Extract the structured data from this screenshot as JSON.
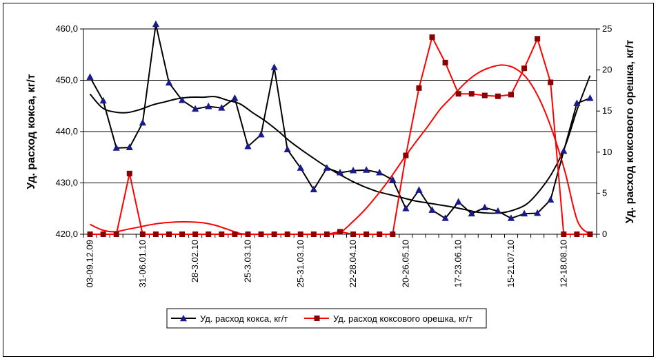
{
  "chart_data": {
    "type": "line",
    "ylabel_left": "Уд. расход кокса, кг/т",
    "ylabel_right": "Уд. расход коксового орешка, кг/т",
    "ylim_left": [
      420,
      460
    ],
    "yticks_left": [
      "420,0",
      "430,0",
      "440,0",
      "450,0",
      "460,0"
    ],
    "ylim_right": [
      0,
      25
    ],
    "yticks_right": [
      "0",
      "5",
      "10",
      "15",
      "20",
      "25"
    ],
    "x_tick_labels": [
      {
        "index": 0,
        "label": "03-09.12.09"
      },
      {
        "index": 4,
        "label": "31-06.01.10"
      },
      {
        "index": 8,
        "label": "28-3.02.10"
      },
      {
        "index": 12,
        "label": "25-3.03.10"
      },
      {
        "index": 16,
        "label": "25-31.03.10"
      },
      {
        "index": 20,
        "label": "22-28.04.10"
      },
      {
        "index": 24,
        "label": "20-26.05.10"
      },
      {
        "index": 28,
        "label": "17-23.06.10"
      },
      {
        "index": 32,
        "label": "15-21.07.10"
      },
      {
        "index": 36,
        "label": "12-18.08.10"
      }
    ],
    "grid": "horizontal",
    "legend_position": "bottom",
    "series": [
      {
        "name": "Уд. расход кокса, кг/т",
        "axis": "left",
        "color": "#1a1a8c",
        "marker": "triangle",
        "values": [
          450.6,
          446.0,
          436.8,
          436.9,
          441.7,
          460.9,
          449.5,
          446.1,
          444.4,
          444.9,
          444.6,
          446.5,
          437.1,
          439.4,
          452.5,
          436.5,
          432.9,
          428.7,
          432.9,
          432.0,
          432.4,
          432.5,
          432.0,
          430.6,
          425.0,
          428.6,
          424.7,
          423.1,
          426.3,
          424.0,
          425.2,
          424.5,
          423.1,
          424.0,
          424.1,
          426.7,
          436.2,
          445.5,
          446.5
        ]
      },
      {
        "name": "Уд. расход коксового орешка, кг/т",
        "axis": "right",
        "color": "#ff0000",
        "marker_color": "#8b0000",
        "marker": "square",
        "values": [
          0,
          0,
          0,
          7.4,
          0,
          0,
          0,
          0,
          0,
          0,
          0,
          0,
          0,
          0,
          0,
          0,
          0,
          0,
          0,
          0.3,
          0,
          0,
          0,
          0,
          9.6,
          17.8,
          24.0,
          20.9,
          17.1,
          17.1,
          16.9,
          16.8,
          17.0,
          20.2,
          23.8,
          18.5,
          0,
          0,
          0
        ]
      }
    ],
    "trendlines": [
      {
        "axis": "left",
        "color": "#000000",
        "type": "polynomial",
        "values": [
          447.3,
          444.6,
          443.8,
          443.7,
          444.3,
          445.2,
          445.8,
          446.4,
          446.7,
          446.7,
          446.8,
          446.1,
          445.4,
          443.7,
          442.1,
          440.2,
          438.1,
          436.3,
          434.6,
          433.0,
          431.6,
          430.3,
          429.2,
          428.3,
          427.7,
          427.1,
          426.5,
          426.1,
          425.7,
          425.3,
          424.8,
          424.3,
          424.1,
          424.2,
          424.8,
          426.0,
          428.6,
          432.1,
          437.1,
          444.5,
          450.9
        ]
      },
      {
        "axis": "right",
        "color": "#ff0000",
        "type": "polynomial",
        "values": [
          1.2,
          0.5,
          0.3,
          0.6,
          0.9,
          1.2,
          1.4,
          1.5,
          1.5,
          1.4,
          1.1,
          0.6,
          0.1,
          0,
          0,
          0,
          0,
          0,
          0,
          0,
          0.2,
          1.5,
          3.0,
          4.8,
          6.8,
          9.0,
          11.1,
          13.1,
          15.2,
          16.8,
          18.4,
          19.6,
          20.3,
          20.6,
          20.2,
          18.9,
          16.3,
          12.5,
          7.6,
          1.6,
          0
        ]
      }
    ]
  }
}
